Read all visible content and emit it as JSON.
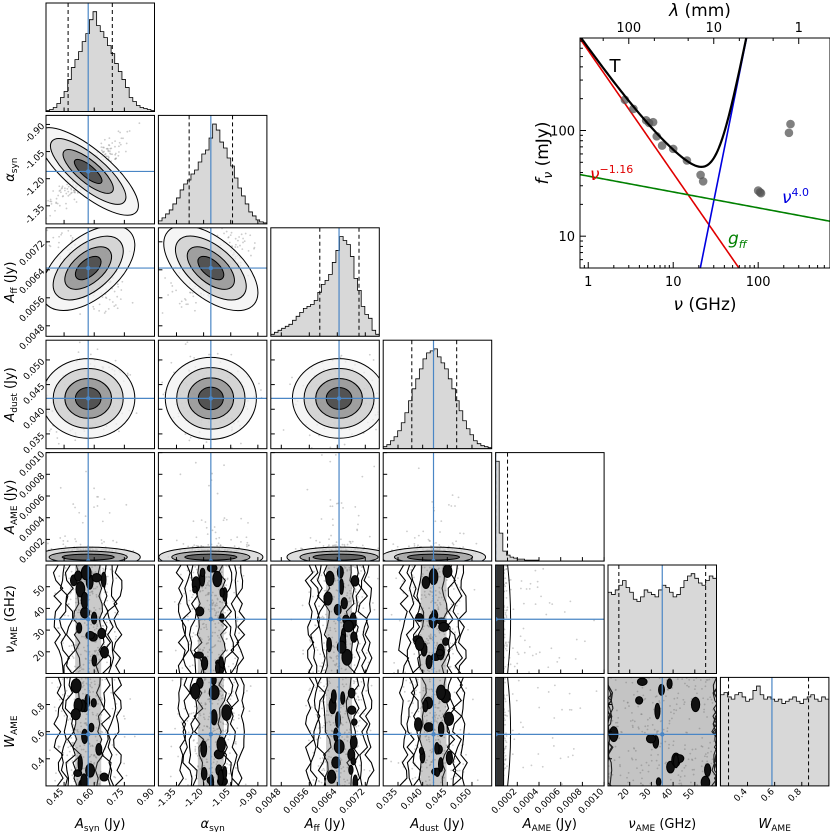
{
  "colors": {
    "truth": "#4a86c5",
    "hist_fill": "#d8d8d8",
    "synchrotron": "#e00000",
    "dust": "#0000e0",
    "free_free": "#008000",
    "total": "#000000",
    "points": "#555555"
  },
  "chart_data": [
    {
      "type": "corner",
      "parameters": [
        {
          "key": "A_syn",
          "label": "A_syn (Jy)",
          "label_main": "A",
          "label_sub": "syn",
          "label_unit": " (Jy)",
          "range": [
            0.36,
            0.9
          ],
          "ticks": [
            "0.45",
            "0.60",
            "0.75",
            "0.90"
          ],
          "tick_values": [
            0.45,
            0.6,
            0.75,
            0.9
          ],
          "truth": 0.57,
          "quantiles": [
            0.47,
            0.57,
            0.69
          ],
          "hist": [
            1,
            2,
            4,
            8,
            14,
            20,
            32,
            44,
            52,
            60,
            70,
            78,
            92,
            100,
            86,
            80,
            74,
            66,
            58,
            48,
            40,
            32,
            24,
            14,
            10,
            6,
            4,
            3,
            2,
            1
          ]
        },
        {
          "key": "alpha_syn",
          "label": "α_syn",
          "label_main": "α",
          "label_sub": "syn",
          "label_unit": "",
          "range": [
            -1.45,
            -0.85
          ],
          "ticks": [
            "-1.35",
            "-1.20",
            "-1.05",
            "-0.90"
          ],
          "tick_values": [
            -1.35,
            -1.2,
            -1.05,
            -0.9
          ],
          "truth": -1.16,
          "quantiles": [
            -1.28,
            -1.16,
            -1.04
          ],
          "hist": [
            3,
            6,
            10,
            14,
            20,
            26,
            34,
            40,
            44,
            50,
            54,
            62,
            70,
            74,
            86,
            100,
            94,
            82,
            76,
            66,
            58,
            46,
            36,
            28,
            20,
            12,
            8,
            4,
            2,
            1
          ]
        },
        {
          "key": "A_ff",
          "label": "A_ff (Jy)",
          "label_main": "A",
          "label_sub": "ff",
          "label_unit": " (Jy)",
          "range": [
            0.0045,
            0.0076
          ],
          "ticks": [
            "0.0048",
            "0.0056",
            "0.0064",
            "0.0072"
          ],
          "tick_values": [
            0.0048,
            0.0056,
            0.0064,
            0.0072
          ],
          "truth": 0.00645,
          "quantiles": [
            0.0059,
            0.00648,
            0.00702
          ],
          "hist": [
            2,
            4,
            6,
            8,
            10,
            12,
            16,
            20,
            24,
            28,
            30,
            32,
            36,
            44,
            52,
            56,
            62,
            74,
            86,
            100,
            96,
            92,
            80,
            58,
            46,
            30,
            22,
            18,
            6,
            2
          ]
        },
        {
          "key": "A_dust",
          "label": "A_dust (Jy)",
          "label_main": "A",
          "label_sub": "dust",
          "label_unit": " (Jy)",
          "range": [
            0.032,
            0.054
          ],
          "ticks": [
            "0.035",
            "0.040",
            "0.045",
            "0.050"
          ],
          "tick_values": [
            0.035,
            0.04,
            0.045,
            0.05
          ],
          "truth": 0.0422,
          "quantiles": [
            0.0378,
            0.0422,
            0.0469
          ],
          "hist": [
            2,
            4,
            8,
            12,
            18,
            26,
            36,
            48,
            60,
            70,
            80,
            90,
            96,
            98,
            100,
            92,
            86,
            80,
            70,
            60,
            48,
            38,
            28,
            20,
            14,
            8,
            5,
            3,
            2,
            1
          ]
        },
        {
          "key": "A_AME",
          "label": "A_AME (Jy)",
          "label_main": "A",
          "label_sub": "AME",
          "label_unit": " (Jy)",
          "range": [
            0.0,
            0.001
          ],
          "ticks": [
            "0.0002",
            "0.0004",
            "0.0006",
            "0.0008",
            "0.0010"
          ],
          "tick_values": [
            0.0002,
            0.0004,
            0.0006,
            0.0008,
            0.001
          ],
          "truth": 0.0,
          "quantiles": [
            0.0,
            1e-05,
            0.00011
          ],
          "hist": [
            100,
            28,
            10,
            6,
            4,
            3,
            2,
            2,
            1,
            1,
            1,
            1,
            0,
            0,
            0,
            0,
            0,
            0,
            0,
            0,
            0,
            0,
            0,
            0,
            0,
            0,
            0,
            0,
            0,
            0
          ]
        },
        {
          "key": "nu_AME",
          "label": "ν_AME (GHz)",
          "label_main": "ν",
          "label_sub": "AME",
          "label_unit": " (GHz)",
          "range": [
            10,
            60
          ],
          "ticks": [
            "20",
            "30",
            "40",
            "50"
          ],
          "tick_values": [
            20,
            30,
            40,
            50
          ],
          "truth": 35,
          "quantiles": [
            15,
            35,
            55
          ],
          "hist": [
            70,
            68,
            72,
            76,
            80,
            74,
            70,
            64,
            62,
            66,
            72,
            70,
            68,
            66,
            72,
            76,
            74,
            70,
            66,
            68,
            74,
            80,
            84,
            86,
            82,
            78,
            76,
            80,
            84,
            82
          ]
        },
        {
          "key": "W_AME",
          "label": "W_AME",
          "label_main": "W",
          "label_sub": "AME",
          "label_unit": "",
          "range": [
            0.2,
            1.0
          ],
          "ticks": [
            "0.4",
            "0.6",
            "0.8"
          ],
          "tick_values": [
            0.4,
            0.6,
            0.8
          ],
          "truth": 0.58,
          "quantiles": [
            0.26,
            0.58,
            0.85
          ],
          "hist": [
            84,
            86,
            82,
            80,
            84,
            86,
            82,
            78,
            80,
            88,
            92,
            84,
            80,
            82,
            80,
            78,
            80,
            76,
            78,
            80,
            82,
            78,
            76,
            80,
            82,
            84,
            80,
            78,
            82,
            80
          ]
        }
      ],
      "row_ylabels": [
        {
          "main": "α",
          "sub": "syn",
          "unit": ""
        },
        {
          "main": "A",
          "sub": "ff",
          "unit": " (Jy)"
        },
        {
          "main": "A",
          "sub": "dust",
          "unit": " (Jy)"
        },
        {
          "main": "A",
          "sub": "AME",
          "unit": " (Jy)"
        },
        {
          "main": "ν",
          "sub": "AME",
          "unit": " (GHz)"
        },
        {
          "main": "W",
          "sub": "AME",
          "unit": ""
        }
      ]
    },
    {
      "type": "line",
      "title": "T",
      "xlabel": "ν (GHz)",
      "ylabel": "f_ν (mJy)",
      "top_xlabel": "λ (mm)",
      "xscale": "log",
      "yscale": "log",
      "xlim": [
        0.8,
        700
      ],
      "ylim": [
        5,
        750
      ],
      "x_ticks": [
        "1",
        "10",
        "100"
      ],
      "y_ticks": [
        "10",
        "100"
      ],
      "top_ticks": [
        {
          "label": "100",
          "lambda_mm": 100
        },
        {
          "label": "10",
          "lambda_mm": 10
        },
        {
          "label": "1",
          "lambda_mm": 1
        }
      ],
      "data_points": [
        {
          "x": 2.7,
          "y": 195
        },
        {
          "x": 3.4,
          "y": 160
        },
        {
          "x": 4.8,
          "y": 125
        },
        {
          "x": 5.2,
          "y": 118
        },
        {
          "x": 5.8,
          "y": 120
        },
        {
          "x": 6.4,
          "y": 88
        },
        {
          "x": 7.4,
          "y": 72
        },
        {
          "x": 10,
          "y": 67
        },
        {
          "x": 14.5,
          "y": 52
        },
        {
          "x": 21,
          "y": 38
        },
        {
          "x": 22.5,
          "y": 33
        },
        {
          "x": 100,
          "y": 27
        },
        {
          "x": 105,
          "y": 26
        },
        {
          "x": 108,
          "y": 25.5
        },
        {
          "x": 230,
          "y": 95
        },
        {
          "x": 240,
          "y": 115
        }
      ],
      "series": [
        {
          "name": "synchrotron",
          "label": "ν^-1.16",
          "label_base": "ν",
          "label_exp": "−1.16",
          "amplitude_at_1GHz": 570,
          "index": -1.16
        },
        {
          "name": "dust",
          "label": "ν^4.0",
          "label_base": "ν",
          "label_exp": "4.0",
          "amplitude_at_1GHz": 2.65e-05,
          "index": 4.0
        },
        {
          "name": "free-free",
          "label": "g_ff",
          "label_base": "g",
          "label_sub": "ff",
          "amplitude_at_1GHz": 37,
          "index": -0.15
        },
        {
          "name": "total",
          "label": "",
          "components": [
            "synchrotron",
            "free-free",
            "dust"
          ]
        }
      ]
    }
  ]
}
